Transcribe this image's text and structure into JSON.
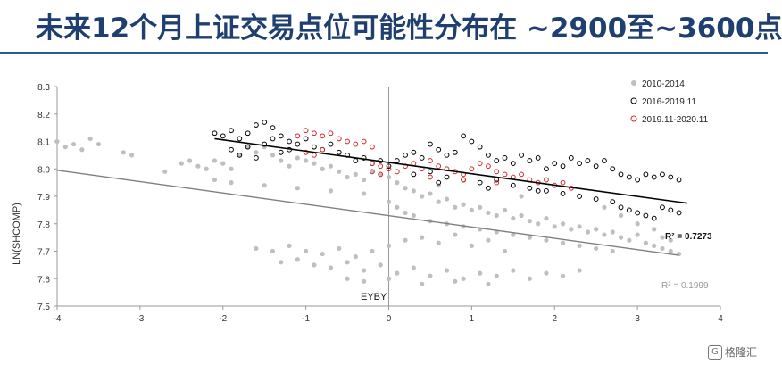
{
  "header": {
    "title": "未来12个月上证交易点位可能性分布在 ~2900至~3600点"
  },
  "watermark": {
    "icon": "gelonghui-logo-icon",
    "text": "格隆汇"
  },
  "chart_data": {
    "type": "scatter",
    "title": "",
    "xlabel": "EYBY",
    "ylabel": "LN(SHCOMP)",
    "xlim": [
      -4,
      4
    ],
    "ylim": [
      7.5,
      8.3
    ],
    "xticks": [
      -4,
      -3,
      -2,
      -1,
      0,
      1,
      2,
      3,
      4
    ],
    "yticks": [
      7.5,
      7.6,
      7.7,
      7.8,
      7.9,
      8.0,
      8.1,
      8.2,
      8.3
    ],
    "grid": false,
    "legend": "top-right",
    "series": [
      {
        "name": "2010-2014",
        "marker": "filled-circle",
        "color": "#bfbfbf",
        "points": [
          [
            -4.0,
            8.1
          ],
          [
            -3.9,
            8.08
          ],
          [
            -3.8,
            8.09
          ],
          [
            -3.7,
            8.07
          ],
          [
            -3.6,
            8.11
          ],
          [
            -3.5,
            8.09
          ],
          [
            -3.2,
            8.06
          ],
          [
            -3.1,
            8.05
          ],
          [
            -2.7,
            7.99
          ],
          [
            -2.5,
            8.02
          ],
          [
            -2.4,
            8.03
          ],
          [
            -2.3,
            8.01
          ],
          [
            -2.2,
            8.0
          ],
          [
            -2.1,
            8.03
          ],
          [
            -2.0,
            8.02
          ],
          [
            -1.9,
            8.0
          ],
          [
            -1.8,
            8.05
          ],
          [
            -1.7,
            8.08
          ],
          [
            -1.6,
            8.06
          ],
          [
            -1.5,
            8.08
          ],
          [
            -1.4,
            8.05
          ],
          [
            -1.3,
            8.03
          ],
          [
            -1.2,
            8.01
          ],
          [
            -1.1,
            8.04
          ],
          [
            -1.0,
            8.03
          ],
          [
            -0.9,
            8.02
          ],
          [
            -0.8,
            8.0
          ],
          [
            -0.7,
            8.01
          ],
          [
            -0.6,
            7.99
          ],
          [
            -0.5,
            7.97
          ],
          [
            -0.4,
            7.98
          ],
          [
            -0.3,
            7.96
          ],
          [
            -0.2,
            7.99
          ],
          [
            -0.1,
            7.98
          ],
          [
            0.0,
            7.97
          ],
          [
            0.1,
            7.95
          ],
          [
            0.2,
            7.93
          ],
          [
            0.3,
            7.92
          ],
          [
            0.4,
            7.9
          ],
          [
            0.5,
            7.91
          ],
          [
            0.6,
            7.88
          ],
          [
            0.7,
            7.89
          ],
          [
            0.8,
            7.86
          ],
          [
            0.9,
            7.87
          ],
          [
            1.0,
            7.85
          ],
          [
            1.1,
            7.86
          ],
          [
            1.2,
            7.84
          ],
          [
            1.3,
            7.83
          ],
          [
            1.4,
            7.85
          ],
          [
            1.5,
            7.82
          ],
          [
            1.6,
            7.83
          ],
          [
            1.7,
            7.81
          ],
          [
            1.8,
            7.8
          ],
          [
            1.9,
            7.82
          ],
          [
            2.0,
            7.79
          ],
          [
            2.1,
            7.8
          ],
          [
            2.2,
            7.78
          ],
          [
            2.3,
            7.79
          ],
          [
            2.4,
            7.77
          ],
          [
            2.5,
            7.78
          ],
          [
            2.6,
            7.76
          ],
          [
            2.7,
            7.77
          ],
          [
            2.8,
            7.75
          ],
          [
            2.9,
            7.74
          ],
          [
            3.0,
            7.76
          ],
          [
            3.1,
            7.73
          ],
          [
            3.2,
            7.72
          ],
          [
            3.3,
            7.71
          ],
          [
            3.4,
            7.7
          ],
          [
            3.5,
            7.69
          ],
          [
            0.0,
            7.88
          ],
          [
            0.1,
            7.86
          ],
          [
            0.2,
            7.84
          ],
          [
            0.3,
            7.83
          ],
          [
            0.5,
            7.81
          ],
          [
            0.7,
            7.8
          ],
          [
            0.9,
            7.79
          ],
          [
            1.1,
            7.78
          ],
          [
            1.3,
            7.77
          ],
          [
            1.5,
            7.76
          ],
          [
            1.7,
            7.75
          ],
          [
            1.9,
            7.74
          ],
          [
            2.1,
            7.73
          ],
          [
            2.3,
            7.72
          ],
          [
            2.5,
            7.71
          ],
          [
            2.7,
            7.7
          ],
          [
            -1.6,
            7.71
          ],
          [
            -1.4,
            7.7
          ],
          [
            -1.2,
            7.72
          ],
          [
            -1.0,
            7.7
          ],
          [
            -0.8,
            7.69
          ],
          [
            -0.6,
            7.71
          ],
          [
            -0.4,
            7.68
          ],
          [
            -0.2,
            7.7
          ],
          [
            0.0,
            7.72
          ],
          [
            0.2,
            7.74
          ],
          [
            0.4,
            7.75
          ],
          [
            0.6,
            7.73
          ],
          [
            0.8,
            7.76
          ],
          [
            1.0,
            7.72
          ],
          [
            1.2,
            7.74
          ],
          [
            1.4,
            7.7
          ],
          [
            -1.3,
            7.66
          ],
          [
            -1.1,
            7.67
          ],
          [
            -0.9,
            7.65
          ],
          [
            -0.7,
            7.64
          ],
          [
            -0.5,
            7.66
          ],
          [
            -0.3,
            7.63
          ],
          [
            -0.1,
            7.65
          ],
          [
            0.1,
            7.62
          ],
          [
            0.3,
            7.64
          ],
          [
            0.5,
            7.61
          ],
          [
            0.7,
            7.63
          ],
          [
            0.9,
            7.6
          ],
          [
            1.1,
            7.62
          ],
          [
            1.3,
            7.61
          ],
          [
            1.5,
            7.63
          ],
          [
            1.7,
            7.6
          ],
          [
            1.9,
            7.62
          ],
          [
            2.1,
            7.61
          ],
          [
            2.3,
            7.63
          ],
          [
            -0.5,
            7.6
          ],
          [
            -0.3,
            7.59
          ],
          [
            0.0,
            7.6
          ],
          [
            0.4,
            7.58
          ],
          [
            0.8,
            7.59
          ],
          [
            1.2,
            7.58
          ],
          [
            -2.1,
            7.96
          ],
          [
            -1.9,
            7.95
          ],
          [
            -1.5,
            7.94
          ],
          [
            -1.1,
            7.93
          ],
          [
            -0.7,
            7.92
          ],
          [
            -0.3,
            7.91
          ],
          [
            0.6,
            7.94
          ],
          [
            1.6,
            7.9
          ],
          [
            2.6,
            7.86
          ],
          [
            2.8,
            7.83
          ],
          [
            3.0,
            7.8
          ],
          [
            3.2,
            7.78
          ],
          [
            3.3,
            7.75
          ],
          [
            3.4,
            7.74
          ]
        ]
      },
      {
        "name": "2016-2019.11",
        "marker": "open-circle",
        "color": "#000000",
        "points": [
          [
            -2.1,
            8.13
          ],
          [
            -2.0,
            8.12
          ],
          [
            -1.9,
            8.14
          ],
          [
            -1.8,
            8.11
          ],
          [
            -1.7,
            8.13
          ],
          [
            -1.6,
            8.16
          ],
          [
            -1.5,
            8.17
          ],
          [
            -1.4,
            8.15
          ],
          [
            -1.3,
            8.12
          ],
          [
            -1.2,
            8.1
          ],
          [
            -1.1,
            8.09
          ],
          [
            -1.0,
            8.11
          ],
          [
            -0.9,
            8.08
          ],
          [
            -0.8,
            8.07
          ],
          [
            -0.7,
            8.09
          ],
          [
            -0.6,
            8.06
          ],
          [
            -1.9,
            8.07
          ],
          [
            -1.8,
            8.05
          ],
          [
            -1.7,
            8.08
          ],
          [
            -1.6,
            8.04
          ],
          [
            -1.5,
            8.09
          ],
          [
            -1.4,
            8.11
          ],
          [
            -1.3,
            8.06
          ],
          [
            -1.2,
            8.07
          ],
          [
            -0.5,
            8.05
          ],
          [
            -0.4,
            8.03
          ],
          [
            -0.3,
            8.04
          ],
          [
            -0.2,
            8.02
          ],
          [
            -0.1,
            8.03
          ],
          [
            0.0,
            8.01
          ],
          [
            0.1,
            8.03
          ],
          [
            0.2,
            8.05
          ],
          [
            0.3,
            8.06
          ],
          [
            0.4,
            8.04
          ],
          [
            0.5,
            8.09
          ],
          [
            0.6,
            8.07
          ],
          [
            0.7,
            8.05
          ],
          [
            0.8,
            8.06
          ],
          [
            0.9,
            8.12
          ],
          [
            1.0,
            8.1
          ],
          [
            1.1,
            8.08
          ],
          [
            1.2,
            8.05
          ],
          [
            1.3,
            8.03
          ],
          [
            1.4,
            8.04
          ],
          [
            1.5,
            8.02
          ],
          [
            1.6,
            8.05
          ],
          [
            1.7,
            8.03
          ],
          [
            1.8,
            8.04
          ],
          [
            1.9,
            8.0
          ],
          [
            2.0,
            8.02
          ],
          [
            2.1,
            8.01
          ],
          [
            2.2,
            8.04
          ],
          [
            2.3,
            8.02
          ],
          [
            2.4,
            8.03
          ],
          [
            2.5,
            8.01
          ],
          [
            2.6,
            8.03
          ],
          [
            2.7,
            8.0
          ],
          [
            2.8,
            7.98
          ],
          [
            2.9,
            7.97
          ],
          [
            3.0,
            7.96
          ],
          [
            3.1,
            7.98
          ],
          [
            3.2,
            7.97
          ],
          [
            3.3,
            7.98
          ],
          [
            3.4,
            7.97
          ],
          [
            3.5,
            7.96
          ],
          [
            0.3,
            7.98
          ],
          [
            0.5,
            7.99
          ],
          [
            0.7,
            7.97
          ],
          [
            0.9,
            7.96
          ],
          [
            1.1,
            7.95
          ],
          [
            1.3,
            7.96
          ],
          [
            1.5,
            7.94
          ],
          [
            1.7,
            7.93
          ],
          [
            1.9,
            7.92
          ],
          [
            2.1,
            7.91
          ],
          [
            2.3,
            7.9
          ],
          [
            2.5,
            7.89
          ],
          [
            2.7,
            7.88
          ],
          [
            2.8,
            7.86
          ],
          [
            2.9,
            7.85
          ],
          [
            3.0,
            7.84
          ],
          [
            3.1,
            7.83
          ],
          [
            3.2,
            7.82
          ],
          [
            3.3,
            7.86
          ],
          [
            3.4,
            7.85
          ],
          [
            3.5,
            7.84
          ],
          [
            0.6,
            7.95
          ],
          [
            1.2,
            7.93
          ],
          [
            1.8,
            7.92
          ]
        ]
      },
      {
        "name": "2019.11-2020.11",
        "marker": "open-circle",
        "color": "#d62728",
        "points": [
          [
            -1.1,
            8.12
          ],
          [
            -1.0,
            8.14
          ],
          [
            -0.9,
            8.13
          ],
          [
            -0.8,
            8.12
          ],
          [
            -0.7,
            8.13
          ],
          [
            -0.6,
            8.11
          ],
          [
            -0.5,
            8.1
          ],
          [
            -0.4,
            8.09
          ],
          [
            -0.3,
            8.1
          ],
          [
            -0.2,
            8.08
          ],
          [
            -1.0,
            8.06
          ],
          [
            -0.9,
            8.05
          ],
          [
            -0.8,
            8.07
          ],
          [
            -0.2,
            8.02
          ],
          [
            -0.1,
            8.01
          ],
          [
            0.0,
            8.0
          ],
          [
            -0.2,
            7.99
          ],
          [
            -0.1,
            7.98
          ],
          [
            0.1,
            7.99
          ],
          [
            0.2,
            8.01
          ],
          [
            0.3,
            8.02
          ],
          [
            0.4,
            8.0
          ],
          [
            0.5,
            8.03
          ],
          [
            0.6,
            8.01
          ],
          [
            0.7,
            8.0
          ],
          [
            0.8,
            7.99
          ],
          [
            0.9,
            7.98
          ],
          [
            1.0,
            8.0
          ],
          [
            1.1,
            8.02
          ],
          [
            1.2,
            8.01
          ],
          [
            1.3,
            7.99
          ],
          [
            1.4,
            7.98
          ],
          [
            1.5,
            7.97
          ],
          [
            1.6,
            7.98
          ],
          [
            1.7,
            7.96
          ],
          [
            1.8,
            7.95
          ],
          [
            1.9,
            7.96
          ],
          [
            2.0,
            7.94
          ],
          [
            2.1,
            7.95
          ],
          [
            2.2,
            7.93
          ],
          [
            0.5,
            7.97
          ],
          [
            0.9,
            7.96
          ],
          [
            1.3,
            7.95
          ]
        ]
      }
    ],
    "trendlines": [
      {
        "series": "2010-2014",
        "color": "#7f7f7f",
        "x": [
          -4,
          3.5
        ],
        "y": [
          7.995,
          7.685
        ],
        "label": "R² = 0.1999"
      },
      {
        "series": "2016-2019.11",
        "color": "#000000",
        "x": [
          -2.1,
          3.6
        ],
        "y": [
          8.11,
          7.875
        ],
        "label": "R² = 0.7273"
      }
    ]
  }
}
